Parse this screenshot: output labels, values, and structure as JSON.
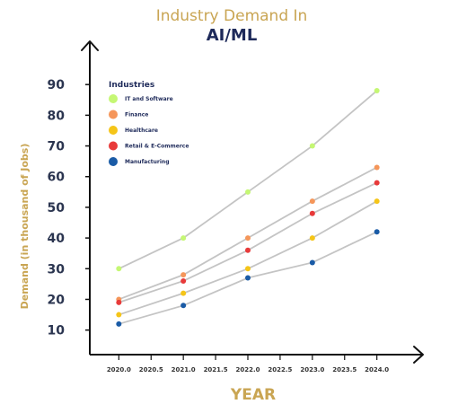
{
  "chart_data": {
    "type": "line",
    "title": "Industry Demand In",
    "subtitle": "AI/ML",
    "xlabel": "YEAR",
    "ylabel": "Demand (in thousand of Jobs)",
    "x": [
      2020.0,
      2021.0,
      2022.0,
      2023.0,
      2024.0
    ],
    "x_ticks": [
      "2020.0",
      "2020.5",
      "2021.0",
      "2021.5",
      "2022.0",
      "2022.5",
      "2023.0",
      "2023.5",
      "2024.0"
    ],
    "y_ticks": [
      "10",
      "20",
      "30",
      "40",
      "50",
      "60",
      "70",
      "80",
      "90"
    ],
    "xlim": [
      2019.55,
      2024.45
    ],
    "ylim": [
      2,
      100
    ],
    "grid": false,
    "legend_title": "Industries",
    "legend_position": "top-left",
    "series": [
      {
        "name": "IT and Software",
        "color": "#c5f774",
        "values": [
          30,
          40,
          55,
          70,
          88
        ]
      },
      {
        "name": "Finance",
        "color": "#f5965a",
        "values": [
          20,
          28,
          40,
          52,
          63
        ]
      },
      {
        "name": "Healthcare",
        "color": "#f5c518",
        "values": [
          15,
          22,
          30,
          40,
          52
        ]
      },
      {
        "name": "Retail & E-Commerce",
        "color": "#e83a3a",
        "values": [
          19,
          26,
          36,
          48,
          58
        ]
      },
      {
        "name": "Manufacturing",
        "color": "#1a5ba6",
        "values": [
          12,
          18,
          27,
          32,
          42
        ]
      }
    ],
    "colors": {
      "title_top": "#c9a553",
      "title_main": "#1e2a5a",
      "axis": "#111111",
      "tick_y": "#2b3550",
      "tick_x": "#333333",
      "xlabel": "#c9a553",
      "ylabel": "#c9a553",
      "line": "#c4c4c4",
      "legend_text": "#1e2a5a"
    }
  }
}
